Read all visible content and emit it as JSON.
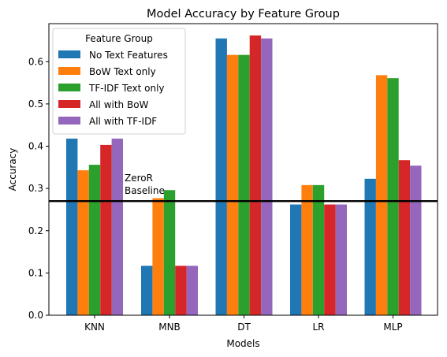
{
  "chart_data": {
    "type": "bar",
    "title": "Model Accuracy by Feature Group",
    "xlabel": "Models",
    "ylabel": "Accuracy",
    "categories": [
      "KNN",
      "MNB",
      "DT",
      "LR",
      "MLP"
    ],
    "ylim": [
      0,
      0.69
    ],
    "yticks": [
      0.0,
      0.1,
      0.2,
      0.3,
      0.4,
      0.5,
      0.6
    ],
    "ytick_labels": [
      "0.0",
      "0.1",
      "0.2",
      "0.3",
      "0.4",
      "0.5",
      "0.6"
    ],
    "grid": false,
    "legend": {
      "title": "Feature Group",
      "placement": "top-left"
    },
    "series": [
      {
        "name": "No Text Features",
        "color": "#1f77b4",
        "values": [
          0.418,
          0.117,
          0.655,
          0.262,
          0.323
        ]
      },
      {
        "name": "BoW Text only",
        "color": "#ff7f0e",
        "values": [
          0.343,
          0.277,
          0.616,
          0.308,
          0.568
        ]
      },
      {
        "name": "TF-IDF Text only",
        "color": "#2ca02c",
        "values": [
          0.356,
          0.296,
          0.616,
          0.308,
          0.561
        ]
      },
      {
        "name": "All with BoW",
        "color": "#d62728",
        "values": [
          0.403,
          0.117,
          0.662,
          0.262,
          0.367
        ]
      },
      {
        "name": "All with TF-IDF",
        "color": "#9467bd",
        "values": [
          0.418,
          0.117,
          0.655,
          0.262,
          0.354
        ]
      }
    ],
    "baseline": {
      "value": 0.27,
      "label_line1": "ZeroR",
      "label_line2": "Baseline",
      "color": "#000000"
    }
  }
}
